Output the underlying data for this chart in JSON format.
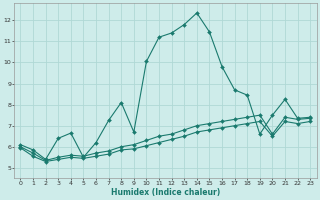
{
  "xlabel": "Humidex (Indice chaleur)",
  "xlim": [
    -0.5,
    23.5
  ],
  "ylim": [
    4.5,
    12.8
  ],
  "yticks": [
    5,
    6,
    7,
    8,
    9,
    10,
    11,
    12
  ],
  "xticks": [
    0,
    1,
    2,
    3,
    4,
    5,
    6,
    7,
    8,
    9,
    10,
    11,
    12,
    13,
    14,
    15,
    16,
    17,
    18,
    19,
    20,
    21,
    22,
    23
  ],
  "background_color": "#ceecea",
  "grid_color": "#b0d8d5",
  "line_color": "#1a7a6e",
  "line1_x": [
    0,
    1,
    2,
    3,
    4,
    5,
    6,
    7,
    8,
    9,
    10,
    11,
    12,
    13,
    14,
    15,
    16,
    17,
    18,
    19,
    20,
    21,
    22,
    23
  ],
  "line1_y": [
    6.1,
    5.85,
    5.4,
    6.4,
    6.65,
    5.5,
    6.2,
    7.25,
    8.1,
    6.7,
    10.05,
    11.2,
    11.4,
    11.8,
    12.35,
    11.45,
    9.8,
    8.7,
    8.45,
    6.6,
    7.5,
    8.25,
    7.35,
    7.4
  ],
  "line2_x": [
    0,
    1,
    2,
    3,
    4,
    5,
    6,
    7,
    8,
    9,
    10,
    11,
    12,
    13,
    14,
    15,
    16,
    17,
    18,
    19,
    20,
    21,
    22,
    23
  ],
  "line2_y": [
    6.0,
    5.7,
    5.35,
    5.5,
    5.6,
    5.55,
    5.7,
    5.8,
    6.0,
    6.1,
    6.3,
    6.5,
    6.6,
    6.8,
    7.0,
    7.1,
    7.2,
    7.3,
    7.4,
    7.5,
    6.6,
    7.4,
    7.3,
    7.35
  ],
  "line3_x": [
    0,
    1,
    2,
    3,
    4,
    5,
    6,
    7,
    8,
    9,
    10,
    11,
    12,
    13,
    14,
    15,
    16,
    17,
    18,
    19,
    20,
    21,
    22,
    23
  ],
  "line3_y": [
    5.95,
    5.55,
    5.3,
    5.4,
    5.5,
    5.45,
    5.55,
    5.65,
    5.85,
    5.9,
    6.05,
    6.2,
    6.35,
    6.5,
    6.7,
    6.8,
    6.9,
    7.0,
    7.1,
    7.2,
    6.5,
    7.2,
    7.1,
    7.2
  ]
}
